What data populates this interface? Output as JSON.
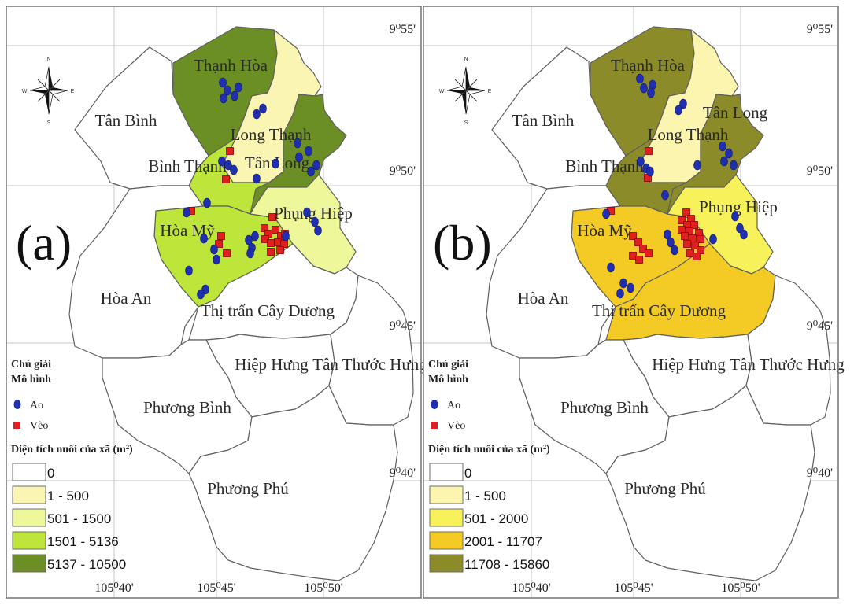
{
  "panels": [
    {
      "letter": "(a)",
      "legend": {
        "title": "Chú giải",
        "model_heading": "Mô hình",
        "pond_label": "Ao",
        "pen_label": "Vèo",
        "area_heading": "Diện tích nuôi của xã (m²)",
        "classes": [
          {
            "range": "0",
            "color": "#ffffff"
          },
          {
            "range": "1 - 500",
            "color": "#fbf5b4"
          },
          {
            "range": "501 - 1500",
            "color": "#eef79a"
          },
          {
            "range": "1501 - 5136",
            "color": "#bde53a"
          },
          {
            "range": "5137 - 10500",
            "color": "#6b8e25"
          }
        ]
      },
      "communes": [
        {
          "name": "Thạnh Hòa",
          "class": 4
        },
        {
          "name": "Long Thạnh",
          "class": 1
        },
        {
          "name": "Tân Long",
          "class": 4
        },
        {
          "name": "Bình Thạnh",
          "class": 3
        },
        {
          "name": "Hòa Mỹ",
          "class": 3
        },
        {
          "name": "Phụng Hiệp",
          "class": 2
        },
        {
          "name": "Tân Bình",
          "class": 0
        },
        {
          "name": "Hòa An",
          "class": 0
        },
        {
          "name": "Thị trấn Cây Dương",
          "class": 0
        },
        {
          "name": "Hiệp Hưng",
          "class": 0
        },
        {
          "name": "Tân Thước Hưng",
          "class": 0
        },
        {
          "name": "Phương Bình",
          "class": 0
        },
        {
          "name": "Phương Phú",
          "class": 0
        }
      ]
    },
    {
      "letter": "(b)",
      "legend": {
        "title": "Chú giải",
        "model_heading": "Mô hình",
        "pond_label": "Ao",
        "pen_label": "Vèo",
        "area_heading": "Diện tích nuôi của xã (m²)",
        "classes": [
          {
            "range": "0",
            "color": "#ffffff"
          },
          {
            "range": "1 - 500",
            "color": "#fbf5b0"
          },
          {
            "range": "501 - 2000",
            "color": "#f7f25a"
          },
          {
            "range": "2001 - 11707",
            "color": "#f3cb24"
          },
          {
            "range": "11708 - 15860",
            "color": "#8c8b2a"
          }
        ]
      },
      "communes": [
        {
          "name": "Thạnh Hòa",
          "class": 4
        },
        {
          "name": "Long Thạnh",
          "class": 1
        },
        {
          "name": "Tân Long",
          "class": 4
        },
        {
          "name": "Bình Thạnh",
          "class": 4
        },
        {
          "name": "Hòa Mỹ",
          "class": 3
        },
        {
          "name": "Phụng Hiệp",
          "class": 2
        },
        {
          "name": "Tân Bình",
          "class": 0
        },
        {
          "name": "Hòa An",
          "class": 0
        },
        {
          "name": "Thị trấn Cây Dương",
          "class": 3
        },
        {
          "name": "Hiệp Hưng",
          "class": 0
        },
        {
          "name": "Tân Thước Hưng",
          "class": 0
        },
        {
          "name": "Phương Bình",
          "class": 0
        },
        {
          "name": "Phương Phú",
          "class": 0
        }
      ]
    }
  ],
  "lat_labels": [
    "9⁰55'",
    "9⁰50'",
    "9⁰45'",
    "9⁰40'"
  ],
  "lon_labels": [
    "105⁰40'",
    "105⁰45'",
    "105⁰50'"
  ],
  "compass": {
    "n": "N",
    "s": "S",
    "e": "E",
    "w": "W"
  },
  "colors": {
    "pond": "#1f2fb0",
    "pen": "#e02020",
    "boundary": "#5f5f5f"
  }
}
